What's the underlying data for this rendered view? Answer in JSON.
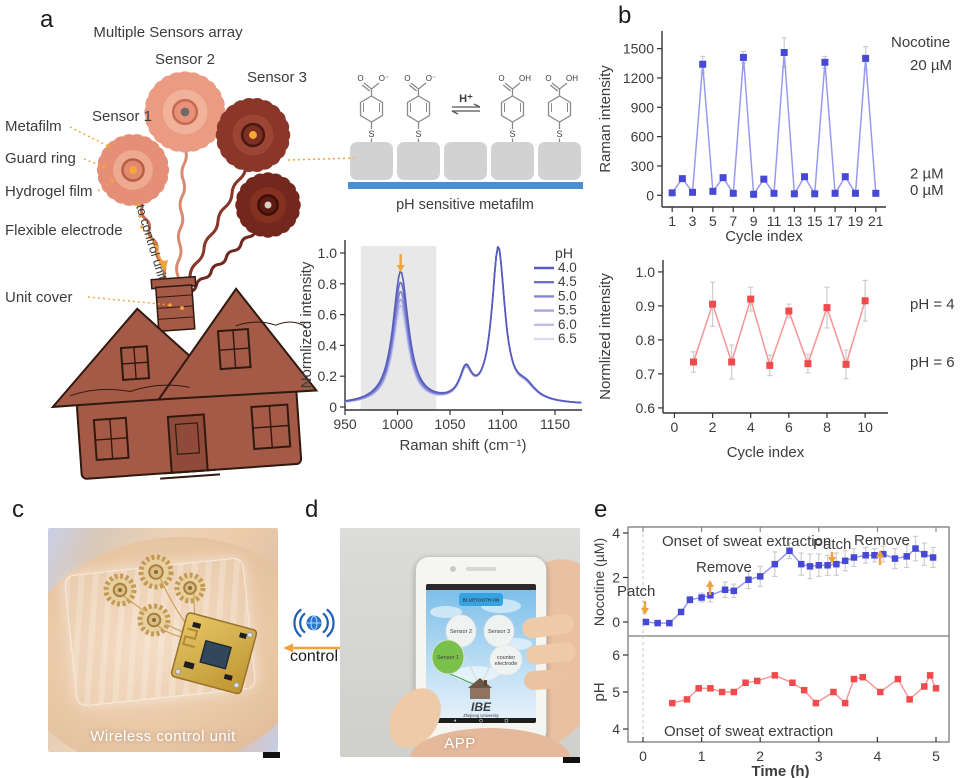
{
  "figure": {
    "panel_a": {
      "label": "a",
      "array_title": "Multiple Sensors array",
      "sensor_labels": [
        "Sensor 1",
        "Sensor 2",
        "Sensor 3"
      ],
      "part_labels": [
        "Metafilm",
        "Guard ring",
        "Hydrogel film",
        "Flexible electrode",
        "Unit cover"
      ],
      "electrode_note": "to control unit",
      "chem": {
        "oxygen": "O",
        "acid_groups": [
          "O⁻",
          "O⁻",
          "OH",
          "OH"
        ],
        "sulfur": "S",
        "proton": "H⁺",
        "caption": "pH sensitive metafilm"
      }
    },
    "panel_b": {
      "label": "b"
    },
    "panel_c": {
      "label": "c",
      "caption": "Wireless control unit"
    },
    "panel_d": {
      "label": "d",
      "caption": "APP",
      "screen": {
        "bluetooth_button": "BLUETOOTH ON",
        "balloons": [
          "Sensor 2",
          "Sensor 3",
          "Sensor 1",
          "counter electrode"
        ],
        "logo": "IBE",
        "logo_subtitle": "Zhejiang University"
      }
    },
    "panel_e": {
      "label": "e"
    },
    "control_link_label": "control"
  },
  "chart_data": [
    {
      "id": "raman_spectra",
      "type": "line",
      "xlabel": "Raman shift (cm⁻¹)",
      "ylabel": "Normlized intensity",
      "xlim": [
        950,
        1175
      ],
      "ylim": [
        0,
        1.05
      ],
      "xticks": [
        950,
        1000,
        1050,
        1100,
        1150
      ],
      "yticks": [
        0,
        0.2,
        0.4,
        0.6,
        0.8,
        1.0
      ],
      "legend_title": "pH",
      "legend_position": "top-right",
      "grid": false,
      "highlight_band_x": [
        965,
        1037
      ],
      "peak_arrow_x": 1003,
      "peak_positions": [
        1003,
        1065,
        1096,
        1122
      ],
      "peak_widths": [
        9,
        7,
        7.5,
        12
      ],
      "series": [
        {
          "name": "4.0",
          "color": "#575cbe",
          "peak_heights": [
            0.86,
            0.19,
            1.0,
            0.09
          ]
        },
        {
          "name": "4.5",
          "color": "#6d72c9",
          "peak_heights": [
            0.79,
            0.19,
            1.0,
            0.09
          ]
        },
        {
          "name": "5.0",
          "color": "#8487d3",
          "peak_heights": [
            0.73,
            0.19,
            1.0,
            0.09
          ]
        },
        {
          "name": "5.5",
          "color": "#a0a3df",
          "peak_heights": [
            0.68,
            0.18,
            1.0,
            0.08
          ]
        },
        {
          "name": "6.0",
          "color": "#bdbfea",
          "peak_heights": [
            0.64,
            0.18,
            1.0,
            0.08
          ]
        },
        {
          "name": "6.5",
          "color": "#d9daf2",
          "peak_heights": [
            0.6,
            0.18,
            1.0,
            0.08
          ]
        }
      ]
    },
    {
      "id": "cycling_raman",
      "type": "line",
      "xlabel": "Cycle index",
      "ylabel": "Raman intensity",
      "x": [
        1,
        2,
        3,
        4,
        5,
        6,
        7,
        8,
        9,
        10,
        11,
        12,
        13,
        14,
        15,
        16,
        17,
        18,
        19,
        20,
        21
      ],
      "values": [
        25,
        170,
        30,
        1340,
        40,
        180,
        20,
        1410,
        10,
        165,
        20,
        1460,
        15,
        190,
        15,
        1360,
        20,
        190,
        20,
        1400,
        20
      ],
      "errors": [
        0,
        0,
        0,
        80,
        0,
        0,
        0,
        60,
        0,
        0,
        0,
        150,
        0,
        0,
        0,
        60,
        0,
        0,
        0,
        120,
        0
      ],
      "xticks": [
        1,
        3,
        5,
        7,
        9,
        11,
        13,
        15,
        17,
        19,
        21
      ],
      "yticks": [
        0,
        300,
        600,
        900,
        1200,
        1500
      ],
      "xlim": [
        0,
        22
      ],
      "ylim": [
        -120,
        1680
      ],
      "right_labels": [
        {
          "text": "Nocotine"
        },
        {
          "text": "20 µM",
          "at_value": 1330
        },
        {
          "text": "2 µM",
          "at_value": 225
        },
        {
          "text": "0 µM",
          "at_value": 55
        }
      ],
      "marker_color": "#4749d6",
      "line_color": "#989af0"
    },
    {
      "id": "cycling_ph",
      "type": "line",
      "xlabel": "Cycle index",
      "ylabel": "Normlized intensity",
      "x": [
        1,
        2,
        3,
        4,
        5,
        6,
        7,
        8,
        9,
        10
      ],
      "values": [
        0.735,
        0.905,
        0.735,
        0.92,
        0.725,
        0.885,
        0.73,
        0.895,
        0.728,
        0.915
      ],
      "errors": [
        0.03,
        0.065,
        0.05,
        0.035,
        0.03,
        0.02,
        0.027,
        0.06,
        0.042,
        0.06
      ],
      "xticks": [
        0,
        2,
        4,
        6,
        8,
        10
      ],
      "yticks": [
        0.6,
        0.7,
        0.8,
        0.9,
        1.0
      ],
      "xlim": [
        -0.6,
        11.2
      ],
      "ylim": [
        0.585,
        1.035
      ],
      "right_labels": [
        {
          "text": "pH = 4",
          "at_value": 0.905
        },
        {
          "text": "pH = 6",
          "at_value": 0.735
        }
      ],
      "marker_color": "#ef4a4c",
      "line_color": "#f79497"
    },
    {
      "id": "sweat_nicotine",
      "type": "line",
      "ylabel": "Nocotine (µM)",
      "x": [
        0.05,
        0.25,
        0.45,
        0.65,
        0.8,
        1.0,
        1.15,
        1.4,
        1.55,
        1.8,
        2.0,
        2.25,
        2.5,
        2.7,
        2.85,
        3.0,
        3.15,
        3.3,
        3.45,
        3.6,
        3.8,
        3.95,
        4.1,
        4.3,
        4.5,
        4.65,
        4.8,
        4.95
      ],
      "values": [
        0,
        -0.05,
        -0.05,
        0.45,
        1.0,
        1.1,
        1.2,
        1.45,
        1.4,
        1.9,
        2.05,
        2.6,
        3.2,
        2.6,
        2.5,
        2.55,
        2.55,
        2.6,
        2.75,
        2.9,
        3.0,
        3.0,
        3.05,
        2.85,
        2.95,
        3.3,
        3.05,
        2.9
      ],
      "errors": [
        0.05,
        0.05,
        0.05,
        0.1,
        0.15,
        0.2,
        0.3,
        0.35,
        0.3,
        0.4,
        0.45,
        0.55,
        0.35,
        0.5,
        0.55,
        0.5,
        0.45,
        0.5,
        0.45,
        0.4,
        0.35,
        0.3,
        0.35,
        0.45,
        0.5,
        0.55,
        0.5,
        0.45
      ],
      "yticks": [
        0,
        2,
        4
      ],
      "ylim": [
        -0.63,
        4.27
      ],
      "dashed_x": 0,
      "annotations": [
        {
          "text": "Onset of sweat extraction",
          "type": "label"
        },
        {
          "text": "Patch",
          "type": "arrow-down",
          "x": 0.05
        },
        {
          "text": "Remove",
          "type": "arrow-up",
          "x": 1.15
        },
        {
          "text": "Patch",
          "type": "arrow-down",
          "x": 3.2
        },
        {
          "text": "Remove",
          "type": "arrow-up",
          "x": 4.0
        }
      ],
      "marker_color": "#4749d6",
      "line_color": "#989af0"
    },
    {
      "id": "sweat_ph",
      "type": "line",
      "xlabel": "Time (h)",
      "ylabel": "pH",
      "x": [
        0.5,
        0.75,
        0.95,
        1.15,
        1.35,
        1.55,
        1.75,
        1.95,
        2.25,
        2.55,
        2.75,
        2.95,
        3.25,
        3.45,
        3.6,
        3.75,
        4.05,
        4.35,
        4.55,
        4.8,
        4.9,
        5.0
      ],
      "values": [
        4.7,
        4.8,
        5.1,
        5.1,
        5.0,
        5.0,
        5.25,
        5.3,
        5.45,
        5.25,
        5.05,
        4.7,
        5.0,
        4.7,
        5.35,
        5.4,
        5.0,
        5.35,
        4.8,
        5.15,
        5.45,
        5.1
      ],
      "xticks": [
        0,
        1,
        2,
        3,
        4,
        5
      ],
      "yticks": [
        4,
        5,
        6
      ],
      "xlim": [
        -0.55,
        5.32
      ],
      "ylim": [
        3.65,
        6.5
      ],
      "dashed_x": 0,
      "annotations": [
        {
          "text": "Onset of sweat extraction",
          "type": "label"
        }
      ],
      "marker_color": "#ef4a4c",
      "line_color": "#f79497"
    }
  ],
  "colors": {
    "orange": "#f0a23c",
    "band_gray": "#e8e8e8",
    "error_gray": "#cdcdcd",
    "metafilm_blue": "#4a8fd4",
    "block_gray": "#d2d2d2",
    "molecule_gray": "#8a8a8a",
    "house_brick": "#a55a48",
    "house_line": "#30190f",
    "balloon_green": "#76c043",
    "logo_blue": "#1258b8"
  }
}
